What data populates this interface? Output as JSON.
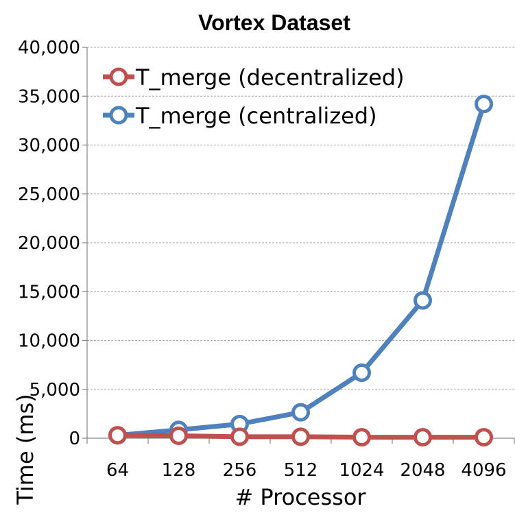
{
  "chart_data": {
    "type": "line",
    "title": "Vortex Dataset",
    "xlabel": "# Processor",
    "ylabel": "Time (ms)",
    "categories": [
      "64",
      "128",
      "256",
      "512",
      "1024",
      "2048",
      "4096"
    ],
    "ylim": [
      0,
      40000
    ],
    "yticks": [
      0,
      5000,
      10000,
      15000,
      20000,
      25000,
      30000,
      35000,
      40000
    ],
    "ytick_labels": [
      "0",
      "5,000",
      "10,000",
      "15,000",
      "20,000",
      "25,000",
      "30,000",
      "35,000",
      "40,000"
    ],
    "grid": true,
    "legend_position": "top-left",
    "series": [
      {
        "name": "T_merge (decentralized)",
        "color": "#c0504d",
        "values": [
          300,
          250,
          150,
          150,
          100,
          100,
          100
        ]
      },
      {
        "name": "T_merge (centralized)",
        "color": "#4f81bd",
        "values": [
          300,
          850,
          1450,
          2650,
          6700,
          14100,
          34200
        ]
      }
    ]
  }
}
